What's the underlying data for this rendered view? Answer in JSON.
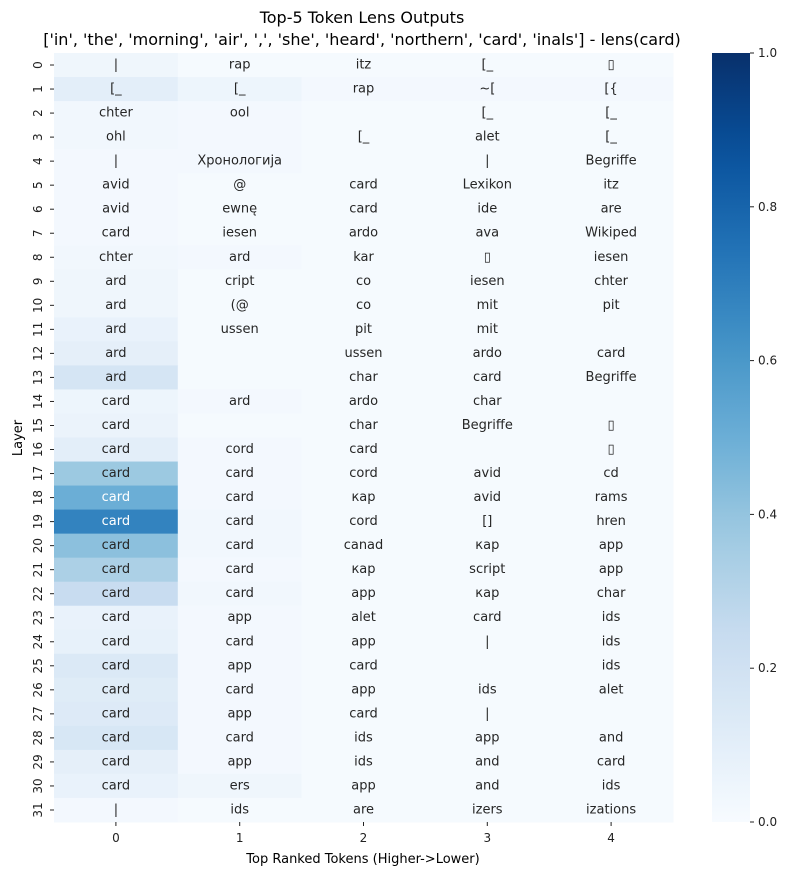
{
  "chart_data": {
    "type": "heatmap",
    "title": "Top-5 Token Lens Outputs",
    "subtitle": "['in', 'the', 'morning', 'air', ',', 'she', 'heard', 'northern', 'card', 'inals'] - lens(card)",
    "xlabel": "Top Ranked Tokens (Higher->Lower)",
    "ylabel": "Layer",
    "x_ticks": [
      "0",
      "1",
      "2",
      "3",
      "4"
    ],
    "y_ticks": [
      "0",
      "1",
      "2",
      "3",
      "4",
      "5",
      "6",
      "7",
      "8",
      "9",
      "10",
      "11",
      "12",
      "13",
      "14",
      "15",
      "16",
      "17",
      "18",
      "19",
      "20",
      "21",
      "22",
      "23",
      "24",
      "25",
      "26",
      "27",
      "28",
      "29",
      "30",
      "31"
    ],
    "colorbar": {
      "range": [
        0.0,
        1.0
      ],
      "ticks": [
        "0.0",
        "0.2",
        "0.4",
        "0.6",
        "0.8",
        "1.0"
      ],
      "colormap": "Blues"
    },
    "tokens": [
      [
        "|",
        "rap",
        "itz",
        "[_",
        "▯"
      ],
      [
        "[_",
        "[_",
        "rap",
        "~[",
        "[{"
      ],
      [
        "chter",
        "ool",
        "",
        "[_",
        "[_"
      ],
      [
        "ohl",
        "",
        "[_",
        "alet",
        "[_"
      ],
      [
        "|",
        "Хронологија",
        "",
        "|",
        "Begriffe"
      ],
      [
        "avid",
        "@",
        "card",
        "Lexikon",
        "itz"
      ],
      [
        "avid",
        "ewnę",
        "card",
        "ide",
        "are"
      ],
      [
        "card",
        "iesen",
        "ardo",
        "ava",
        "Wikiped"
      ],
      [
        "chter",
        "ard",
        "kar",
        "▯",
        "iesen"
      ],
      [
        "ard",
        "cript",
        "co",
        "iesen",
        "chter"
      ],
      [
        "ard",
        "(@",
        "co",
        "mit",
        "pit"
      ],
      [
        "ard",
        "ussen",
        "pit",
        "mit",
        ""
      ],
      [
        "ard",
        "",
        "ussen",
        "ardo",
        "card"
      ],
      [
        "ard",
        "",
        "char",
        "card",
        "Begriffe"
      ],
      [
        "card",
        "ard",
        "ardo",
        "char",
        ""
      ],
      [
        "card",
        "",
        "char",
        "Begriffe",
        "▯"
      ],
      [
        "card",
        "cord",
        "card",
        "",
        "▯"
      ],
      [
        "card",
        "card",
        "cord",
        "avid",
        "cd"
      ],
      [
        "card",
        "card",
        "кар",
        "avid",
        "rams"
      ],
      [
        "card",
        "card",
        "cord",
        "[]",
        "hren"
      ],
      [
        "card",
        "card",
        "canad",
        "кар",
        "app"
      ],
      [
        "card",
        "card",
        "кар",
        "script",
        "app"
      ],
      [
        "card",
        "card",
        "app",
        "кар",
        "char"
      ],
      [
        "card",
        "app",
        "alet",
        "card",
        "ids"
      ],
      [
        "card",
        "card",
        "app",
        "|",
        "ids"
      ],
      [
        "card",
        "app",
        "card",
        "",
        "ids"
      ],
      [
        "card",
        "card",
        "app",
        "ids",
        "alet"
      ],
      [
        "card",
        "app",
        "card",
        "|",
        ""
      ],
      [
        "card",
        "card",
        "ids",
        "app",
        "and"
      ],
      [
        "card",
        "app",
        "ids",
        "and",
        "card"
      ],
      [
        "card",
        "ers",
        "app",
        "and",
        "ids"
      ],
      [
        "|",
        "ids",
        "are",
        "izers",
        "izations"
      ]
    ],
    "values": [
      [
        0.04,
        0.01,
        0.01,
        0.01,
        0.01
      ],
      [
        0.1,
        0.05,
        0.02,
        0.02,
        0.02
      ],
      [
        0.03,
        0.02,
        0.01,
        0.01,
        0.01
      ],
      [
        0.03,
        0.02,
        0.01,
        0.01,
        0.01
      ],
      [
        0.02,
        0.02,
        0.01,
        0.01,
        0.01
      ],
      [
        0.02,
        0.01,
        0.01,
        0.01,
        0.01
      ],
      [
        0.02,
        0.01,
        0.01,
        0.01,
        0.01
      ],
      [
        0.02,
        0.01,
        0.01,
        0.01,
        0.01
      ],
      [
        0.03,
        0.02,
        0.01,
        0.01,
        0.01
      ],
      [
        0.04,
        0.01,
        0.01,
        0.01,
        0.01
      ],
      [
        0.04,
        0.01,
        0.01,
        0.01,
        0.01
      ],
      [
        0.07,
        0.01,
        0.01,
        0.01,
        0.01
      ],
      [
        0.09,
        0.01,
        0.01,
        0.01,
        0.01
      ],
      [
        0.17,
        0.01,
        0.01,
        0.01,
        0.01
      ],
      [
        0.05,
        0.02,
        0.01,
        0.01,
        0.01
      ],
      [
        0.06,
        0.01,
        0.01,
        0.01,
        0.01
      ],
      [
        0.1,
        0.02,
        0.01,
        0.01,
        0.01
      ],
      [
        0.38,
        0.02,
        0.01,
        0.01,
        0.01
      ],
      [
        0.5,
        0.02,
        0.01,
        0.01,
        0.01
      ],
      [
        0.68,
        0.03,
        0.01,
        0.01,
        0.01
      ],
      [
        0.42,
        0.03,
        0.01,
        0.01,
        0.01
      ],
      [
        0.33,
        0.02,
        0.01,
        0.01,
        0.01
      ],
      [
        0.24,
        0.03,
        0.01,
        0.01,
        0.01
      ],
      [
        0.07,
        0.02,
        0.01,
        0.01,
        0.01
      ],
      [
        0.08,
        0.02,
        0.01,
        0.01,
        0.01
      ],
      [
        0.14,
        0.02,
        0.01,
        0.01,
        0.01
      ],
      [
        0.12,
        0.02,
        0.01,
        0.01,
        0.01
      ],
      [
        0.13,
        0.02,
        0.01,
        0.01,
        0.01
      ],
      [
        0.16,
        0.02,
        0.01,
        0.01,
        0.01
      ],
      [
        0.09,
        0.02,
        0.01,
        0.01,
        0.01
      ],
      [
        0.07,
        0.04,
        0.01,
        0.01,
        0.01
      ],
      [
        0.02,
        0.01,
        0.01,
        0.01,
        0.01
      ]
    ]
  }
}
